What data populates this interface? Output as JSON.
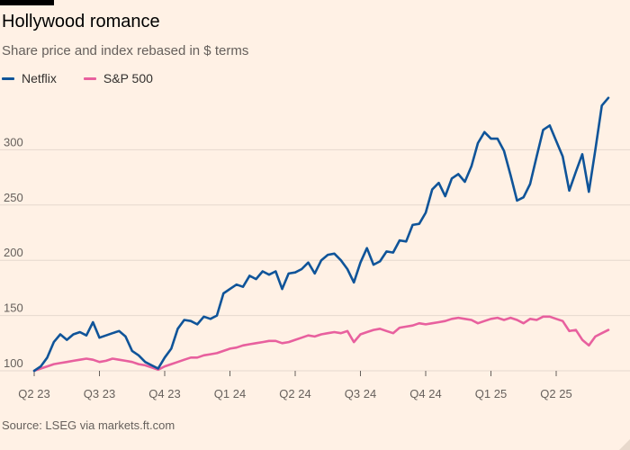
{
  "header": {
    "title": "Hollywood romance",
    "subtitle": "Share price and index rebased in $ terms"
  },
  "footer": {
    "source": "Source: LSEG via markets.ft.com"
  },
  "colors": {
    "background": "#fff1e5",
    "netflix": "#0f5499",
    "sp500": "#e8609e",
    "gridline": "#e6d9ce",
    "text": "#33302e",
    "muted": "#66605c"
  },
  "chart_data": {
    "type": "line",
    "title": "Hollywood romance",
    "subtitle": "Share price and index rebased in $ terms",
    "xlabel": "",
    "ylabel": "",
    "ylim": [
      100,
      350
    ],
    "yticks": [
      100,
      150,
      200,
      250,
      300
    ],
    "grid": true,
    "legend_position": "top-left",
    "x_tick_labels": [
      "Q2 23",
      "Q3 23",
      "Q4 23",
      "Q1 24",
      "Q2 24",
      "Q3 24",
      "Q4 24",
      "Q1 25",
      "Q2 25"
    ],
    "x": [
      0,
      0.1,
      0.2,
      0.3,
      0.4,
      0.5,
      0.6,
      0.7,
      0.8,
      0.9,
      1.0,
      1.1,
      1.2,
      1.3,
      1.4,
      1.5,
      1.6,
      1.7,
      1.8,
      1.9,
      2.0,
      2.1,
      2.2,
      2.3,
      2.4,
      2.5,
      2.6,
      2.7,
      2.8,
      2.9,
      3.0,
      3.1,
      3.2,
      3.3,
      3.4,
      3.5,
      3.6,
      3.7,
      3.8,
      3.9,
      4.0,
      4.1,
      4.2,
      4.3,
      4.4,
      4.5,
      4.6,
      4.7,
      4.8,
      4.9,
      5.0,
      5.1,
      5.2,
      5.3,
      5.4,
      5.5,
      5.6,
      5.7,
      5.8,
      5.9,
      6.0,
      6.1,
      6.2,
      6.3,
      6.4,
      6.5,
      6.6,
      6.7,
      6.8,
      6.9,
      7.0,
      7.1,
      7.2,
      7.3,
      7.4,
      7.5,
      7.6,
      7.7,
      7.8,
      7.9,
      8.0,
      8.1,
      8.2,
      8.3,
      8.4,
      8.5,
      8.6,
      8.7,
      8.8
    ],
    "series": [
      {
        "name": "Netflix",
        "color": "#0f5499",
        "values": [
          100,
          104,
          112,
          126,
          133,
          128,
          133,
          135,
          132,
          144,
          130,
          132,
          134,
          136,
          131,
          118,
          114,
          108,
          105,
          102,
          112,
          120,
          138,
          146,
          145,
          142,
          149,
          147,
          150,
          170,
          174,
          178,
          176,
          186,
          183,
          190,
          187,
          190,
          174,
          188,
          189,
          192,
          198,
          188,
          200,
          205,
          206,
          200,
          192,
          180,
          198,
          211,
          196,
          199,
          208,
          207,
          218,
          217,
          232,
          233,
          243,
          264,
          270,
          258,
          274,
          278,
          271,
          285,
          306,
          316,
          310,
          310,
          299,
          277,
          254,
          257,
          269,
          294,
          318,
          322,
          308,
          294,
          263,
          280,
          296,
          262,
          300,
          340,
          347
        ]
      },
      {
        "name": "S&P 500",
        "color": "#e8609e",
        "values": [
          100,
          102,
          104,
          106,
          107,
          108,
          109,
          110,
          111,
          110,
          108,
          109,
          111,
          110,
          109,
          108,
          106,
          105,
          103,
          101,
          104,
          106,
          108,
          110,
          112,
          112,
          114,
          115,
          116,
          118,
          120,
          121,
          123,
          124,
          125,
          126,
          127,
          127,
          125,
          126,
          128,
          130,
          132,
          131,
          133,
          134,
          135,
          134,
          136,
          126,
          133,
          135,
          137,
          138,
          136,
          134,
          139,
          140,
          141,
          143,
          142,
          143,
          144,
          145,
          147,
          148,
          147,
          146,
          143,
          145,
          147,
          148,
          146,
          148,
          146,
          143,
          147,
          146,
          149,
          149,
          147,
          145,
          136,
          137,
          128,
          123,
          131,
          134,
          137
        ]
      }
    ]
  }
}
